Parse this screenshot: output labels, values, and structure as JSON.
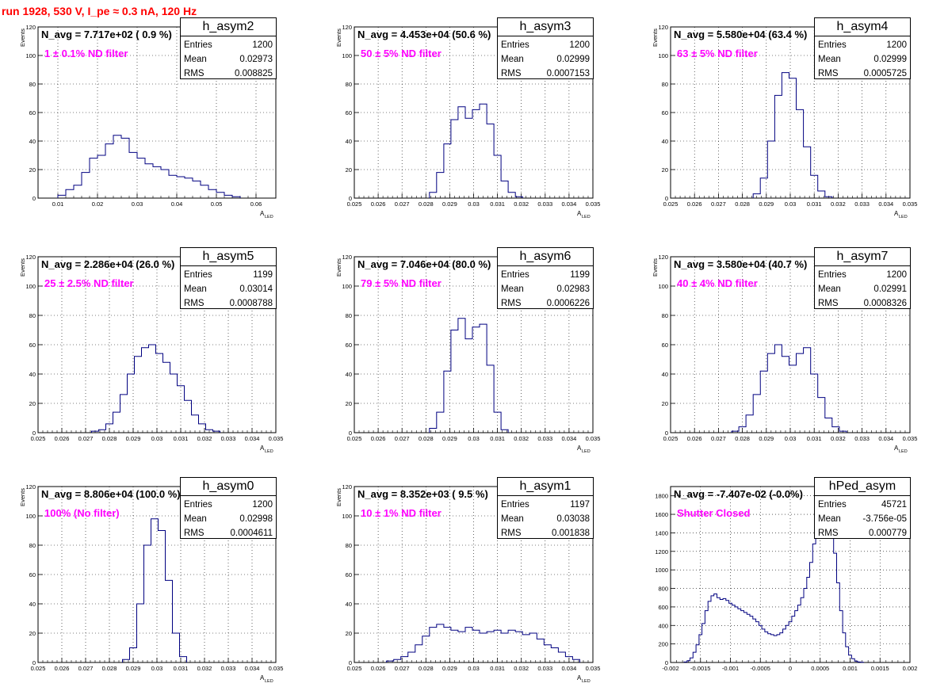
{
  "title": "run 1928,   530 V, I_pe ≈ 0.3 nA, 120 Hz",
  "colors": {
    "title": "#ff0000",
    "annotation": "#ff00ff",
    "histogram": "#000080",
    "grid": "#000000"
  },
  "chart_data": [
    {
      "type": "bar",
      "name": "h_asym2",
      "navg": "N_avg = 7.717e+02 ( 0.9 %)",
      "filter": "1 ± 0.1% ND filter",
      "stats": {
        "entries_label": "Entries",
        "entries": "1200",
        "mean_label": "Mean",
        "mean": "0.02973",
        "rms_label": "RMS",
        "rms": "0.008825"
      },
      "ylabel": "Events",
      "xlabel": "A",
      "xlabel_sub": "LED",
      "xlim": [
        0.005,
        0.065
      ],
      "ylim": [
        0,
        120
      ],
      "xticks": [
        "0.01",
        "0.02",
        "0.03",
        "0.04",
        "0.05",
        "0.06"
      ],
      "xtick_values": [
        0.01,
        0.02,
        0.03,
        0.04,
        0.05,
        0.06
      ],
      "yticks": [
        0,
        20,
        40,
        60,
        80,
        100,
        120
      ],
      "x": [
        0.011,
        0.013,
        0.015,
        0.017,
        0.019,
        0.021,
        0.023,
        0.025,
        0.027,
        0.029,
        0.031,
        0.033,
        0.035,
        0.037,
        0.039,
        0.041,
        0.043,
        0.045,
        0.047,
        0.049,
        0.051,
        0.053,
        0.055
      ],
      "values": [
        2,
        6,
        9,
        18,
        28,
        30,
        38,
        44,
        42,
        32,
        28,
        24,
        22,
        20,
        16,
        15,
        14,
        12,
        9,
        6,
        4,
        2,
        1
      ]
    },
    {
      "type": "bar",
      "name": "h_asym3",
      "navg": "N_avg = 4.453e+04 (50.6 %)",
      "filter": "50 ± 5% ND filter",
      "stats": {
        "entries_label": "Entries",
        "entries": "1200",
        "mean_label": "Mean",
        "mean": "0.02999",
        "rms_label": "RMS",
        "rms": "0.0007153"
      },
      "ylabel": "Events",
      "xlabel": "A",
      "xlabel_sub": "LED",
      "xlim": [
        0.025,
        0.035
      ],
      "ylim": [
        0,
        120
      ],
      "xticks": [
        "0.025",
        "0.026",
        "0.027",
        "0.028",
        "0.029",
        "0.03",
        "0.031",
        "0.032",
        "0.033",
        "0.034",
        "0.035"
      ],
      "xtick_values": [
        0.025,
        0.026,
        0.027,
        0.028,
        0.029,
        0.03,
        0.031,
        0.032,
        0.033,
        0.034,
        0.035
      ],
      "yticks": [
        0,
        20,
        40,
        60,
        80,
        100,
        120
      ],
      "x": [
        0.0283,
        0.0286,
        0.0289,
        0.0292,
        0.0295,
        0.0298,
        0.0301,
        0.0304,
        0.0307,
        0.031,
        0.0313,
        0.0316,
        0.0319
      ],
      "values": [
        4,
        18,
        38,
        55,
        64,
        56,
        62,
        66,
        52,
        30,
        12,
        4,
        1
      ]
    },
    {
      "type": "bar",
      "name": "h_asym4",
      "navg": "N_avg = 5.580e+04 (63.4 %)",
      "filter": "63 ± 5% ND filter",
      "stats": {
        "entries_label": "Entries",
        "entries": "1200",
        "mean_label": "Mean",
        "mean": "0.02999",
        "rms_label": "RMS",
        "rms": "0.0005725"
      },
      "ylabel": "Events",
      "xlabel": "A",
      "xlabel_sub": "LED",
      "xlim": [
        0.025,
        0.035
      ],
      "ylim": [
        0,
        120
      ],
      "xticks": [
        "0.025",
        "0.026",
        "0.027",
        "0.028",
        "0.029",
        "0.03",
        "0.031",
        "0.032",
        "0.033",
        "0.034",
        "0.035"
      ],
      "xtick_values": [
        0.025,
        0.026,
        0.027,
        0.028,
        0.029,
        0.03,
        0.031,
        0.032,
        0.033,
        0.034,
        0.035
      ],
      "yticks": [
        0,
        20,
        40,
        60,
        80,
        100,
        120
      ],
      "x": [
        0.0286,
        0.0289,
        0.0292,
        0.0295,
        0.0298,
        0.0301,
        0.0304,
        0.0307,
        0.031,
        0.0313,
        0.0316
      ],
      "values": [
        3,
        14,
        40,
        72,
        88,
        84,
        62,
        36,
        16,
        5,
        1
      ]
    },
    {
      "type": "bar",
      "name": "h_asym5",
      "navg": "N_avg = 2.286e+04 (26.0 %)",
      "filter": "25 ± 2.5% ND filter",
      "stats": {
        "entries_label": "Entries",
        "entries": "1199",
        "mean_label": "Mean",
        "mean": "0.03014",
        "rms_label": "RMS",
        "rms": "0.0008788"
      },
      "ylabel": "Events",
      "xlabel": "A",
      "xlabel_sub": "LED",
      "xlim": [
        0.025,
        0.035
      ],
      "ylim": [
        0,
        120
      ],
      "xticks": [
        "0.025",
        "0.026",
        "0.027",
        "0.028",
        "0.029",
        "0.03",
        "0.031",
        "0.032",
        "0.033",
        "0.034",
        "0.035"
      ],
      "xtick_values": [
        0.025,
        0.026,
        0.027,
        0.028,
        0.029,
        0.03,
        0.031,
        0.032,
        0.033,
        0.034,
        0.035
      ],
      "yticks": [
        0,
        20,
        40,
        60,
        80,
        100,
        120
      ],
      "x": [
        0.0274,
        0.0277,
        0.028,
        0.0283,
        0.0286,
        0.0289,
        0.0292,
        0.0295,
        0.0298,
        0.0301,
        0.0304,
        0.0307,
        0.031,
        0.0313,
        0.0316,
        0.0319,
        0.0322,
        0.0325
      ],
      "values": [
        1,
        2,
        6,
        14,
        26,
        40,
        52,
        58,
        60,
        54,
        48,
        40,
        32,
        22,
        12,
        6,
        2,
        1
      ]
    },
    {
      "type": "bar",
      "name": "h_asym6",
      "navg": "N_avg = 7.046e+04 (80.0 %)",
      "filter": "79 ± 5% ND filter",
      "stats": {
        "entries_label": "Entries",
        "entries": "1199",
        "mean_label": "Mean",
        "mean": "0.02983",
        "rms_label": "RMS",
        "rms": "0.0006226"
      },
      "ylabel": "Events",
      "xlabel": "A",
      "xlabel_sub": "LED",
      "xlim": [
        0.025,
        0.035
      ],
      "ylim": [
        0,
        120
      ],
      "xticks": [
        "0.025",
        "0.026",
        "0.027",
        "0.028",
        "0.029",
        "0.03",
        "0.031",
        "0.032",
        "0.033",
        "0.034",
        "0.035"
      ],
      "xtick_values": [
        0.025,
        0.026,
        0.027,
        0.028,
        0.029,
        0.03,
        0.031,
        0.032,
        0.033,
        0.034,
        0.035
      ],
      "yticks": [
        0,
        20,
        40,
        60,
        80,
        100,
        120
      ],
      "x": [
        0.0283,
        0.0286,
        0.0289,
        0.0292,
        0.0295,
        0.0298,
        0.0301,
        0.0304,
        0.0307,
        0.031,
        0.0313
      ],
      "values": [
        3,
        14,
        42,
        70,
        78,
        64,
        72,
        74,
        46,
        14,
        2
      ]
    },
    {
      "type": "bar",
      "name": "h_asym7",
      "navg": "N_avg = 3.580e+04 (40.7 %)",
      "filter": "40 ± 4% ND filter",
      "stats": {
        "entries_label": "Entries",
        "entries": "1200",
        "mean_label": "Mean",
        "mean": "0.02991",
        "rms_label": "RMS",
        "rms": "0.0008326"
      },
      "ylabel": "Events",
      "xlabel": "A",
      "xlabel_sub": "LED",
      "xlim": [
        0.025,
        0.035
      ],
      "ylim": [
        0,
        120
      ],
      "xticks": [
        "0.025",
        "0.026",
        "0.027",
        "0.028",
        "0.029",
        "0.03",
        "0.031",
        "0.032",
        "0.033",
        "0.034",
        "0.035"
      ],
      "xtick_values": [
        0.025,
        0.026,
        0.027,
        0.028,
        0.029,
        0.03,
        0.031,
        0.032,
        0.033,
        0.034,
        0.035
      ],
      "yticks": [
        0,
        20,
        40,
        60,
        80,
        100,
        120
      ],
      "x": [
        0.0277,
        0.028,
        0.0283,
        0.0286,
        0.0289,
        0.0292,
        0.0295,
        0.0298,
        0.0301,
        0.0304,
        0.0307,
        0.031,
        0.0313,
        0.0316,
        0.0319,
        0.0322
      ],
      "values": [
        1,
        4,
        12,
        26,
        42,
        54,
        60,
        52,
        46,
        54,
        58,
        40,
        24,
        10,
        4,
        1
      ]
    },
    {
      "type": "bar",
      "name": "h_asym0",
      "navg": "N_avg = 8.806e+04 (100.0 %)",
      "filter": "100% (No filter)",
      "stats": {
        "entries_label": "Entries",
        "entries": "1200",
        "mean_label": "Mean",
        "mean": "0.02998",
        "rms_label": "RMS",
        "rms": "0.0004611"
      },
      "ylabel": "Events",
      "xlabel": "A",
      "xlabel_sub": "LED",
      "xlim": [
        0.025,
        0.035
      ],
      "ylim": [
        0,
        120
      ],
      "xticks": [
        "0.025",
        "0.026",
        "0.027",
        "0.028",
        "0.029",
        "0.03",
        "0.031",
        "0.032",
        "0.033",
        "0.034",
        "0.035"
      ],
      "xtick_values": [
        0.025,
        0.026,
        0.027,
        0.028,
        0.029,
        0.03,
        0.031,
        0.032,
        0.033,
        0.034,
        0.035
      ],
      "yticks": [
        0,
        20,
        40,
        60,
        80,
        100,
        120
      ],
      "x": [
        0.0287,
        0.029,
        0.0293,
        0.0296,
        0.0299,
        0.0302,
        0.0305,
        0.0308,
        0.0311
      ],
      "values": [
        2,
        10,
        40,
        80,
        98,
        90,
        56,
        20,
        4
      ]
    },
    {
      "type": "bar",
      "name": "h_asym1",
      "navg": "N_avg = 8.352e+03 ( 9.5 %)",
      "filter": "10 ± 1% ND filter",
      "stats": {
        "entries_label": "Entries",
        "entries": "1197",
        "mean_label": "Mean",
        "mean": "0.03038",
        "rms_label": "RMS",
        "rms": "0.001838"
      },
      "ylabel": "Events",
      "xlabel": "A",
      "xlabel_sub": "LED",
      "xlim": [
        0.025,
        0.035
      ],
      "ylim": [
        0,
        120
      ],
      "xticks": [
        "0.025",
        "0.026",
        "0.027",
        "0.028",
        "0.029",
        "0.03",
        "0.031",
        "0.032",
        "0.033",
        "0.034",
        "0.035"
      ],
      "xtick_values": [
        0.025,
        0.026,
        0.027,
        0.028,
        0.029,
        0.03,
        0.031,
        0.032,
        0.033,
        0.034,
        0.035
      ],
      "yticks": [
        0,
        20,
        40,
        60,
        80,
        100,
        120
      ],
      "x": [
        0.0265,
        0.0268,
        0.0271,
        0.0274,
        0.0277,
        0.028,
        0.0283,
        0.0286,
        0.0289,
        0.0292,
        0.0295,
        0.0298,
        0.0301,
        0.0304,
        0.0307,
        0.031,
        0.0313,
        0.0316,
        0.0319,
        0.0322,
        0.0325,
        0.0328,
        0.0331,
        0.0334,
        0.0337,
        0.034,
        0.0343
      ],
      "values": [
        1,
        2,
        4,
        7,
        12,
        18,
        24,
        26,
        24,
        22,
        21,
        24,
        22,
        20,
        21,
        22,
        20,
        22,
        21,
        19,
        20,
        16,
        12,
        10,
        7,
        4,
        2
      ]
    },
    {
      "type": "bar",
      "name": "hPed_asym",
      "navg": "N_avg = -7.407e-02 (-0.0%)",
      "filter": "Shutter Closed",
      "stats": {
        "entries_label": "Entries",
        "entries": "45721",
        "mean_label": "Mean",
        "mean": "-3.756e-05",
        "rms_label": "RMS",
        "rms": "0.000779"
      },
      "ylabel": "",
      "xlabel": "",
      "xlabel_sub": "",
      "xlim": [
        -0.002,
        0.002
      ],
      "ylim": [
        0,
        1900
      ],
      "xticks": [
        "-0.002",
        "-0.0015",
        "-0.001",
        "-0.0005",
        "0",
        "0.0005",
        "0.001",
        "0.0015",
        "0.002"
      ],
      "xtick_values": [
        -0.002,
        -0.0015,
        -0.001,
        -0.0005,
        0,
        0.0005,
        0.001,
        0.0015,
        0.002
      ],
      "yticks": [
        0,
        200,
        400,
        600,
        800,
        1000,
        1200,
        1400,
        1600,
        1800
      ],
      "x": [
        -0.00175,
        -0.0017,
        -0.00165,
        -0.0016,
        -0.00155,
        -0.0015,
        -0.00145,
        -0.0014,
        -0.00135,
        -0.0013,
        -0.00125,
        -0.0012,
        -0.00115,
        -0.0011,
        -0.00105,
        -0.001,
        -0.00095,
        -0.0009,
        -0.00085,
        -0.0008,
        -0.00075,
        -0.0007,
        -0.00065,
        -0.0006,
        -0.00055,
        -0.0005,
        -0.00045,
        -0.0004,
        -0.00035,
        -0.0003,
        -0.00025,
        -0.0002,
        -0.00015,
        -0.0001,
        -5e-05,
        0,
        5e-05,
        0.0001,
        0.00015,
        0.0002,
        0.00025,
        0.0003,
        0.00035,
        0.0004,
        0.00045,
        0.0005,
        0.00055,
        0.0006,
        0.00065,
        0.0007,
        0.00075,
        0.0008,
        0.00085,
        0.0009,
        0.00095,
        0.001,
        0.00105,
        0.0011,
        0.00115,
        0.0012
      ],
      "values": [
        5,
        20,
        50,
        110,
        190,
        300,
        420,
        560,
        660,
        720,
        740,
        700,
        680,
        690,
        670,
        640,
        620,
        600,
        580,
        560,
        540,
        520,
        500,
        470,
        440,
        400,
        360,
        330,
        310,
        300,
        290,
        300,
        320,
        360,
        400,
        440,
        500,
        560,
        620,
        700,
        800,
        920,
        1080,
        1280,
        1480,
        1660,
        1800,
        1820,
        1720,
        1500,
        1180,
        860,
        560,
        320,
        170,
        80,
        40,
        15,
        5,
        2
      ]
    }
  ]
}
